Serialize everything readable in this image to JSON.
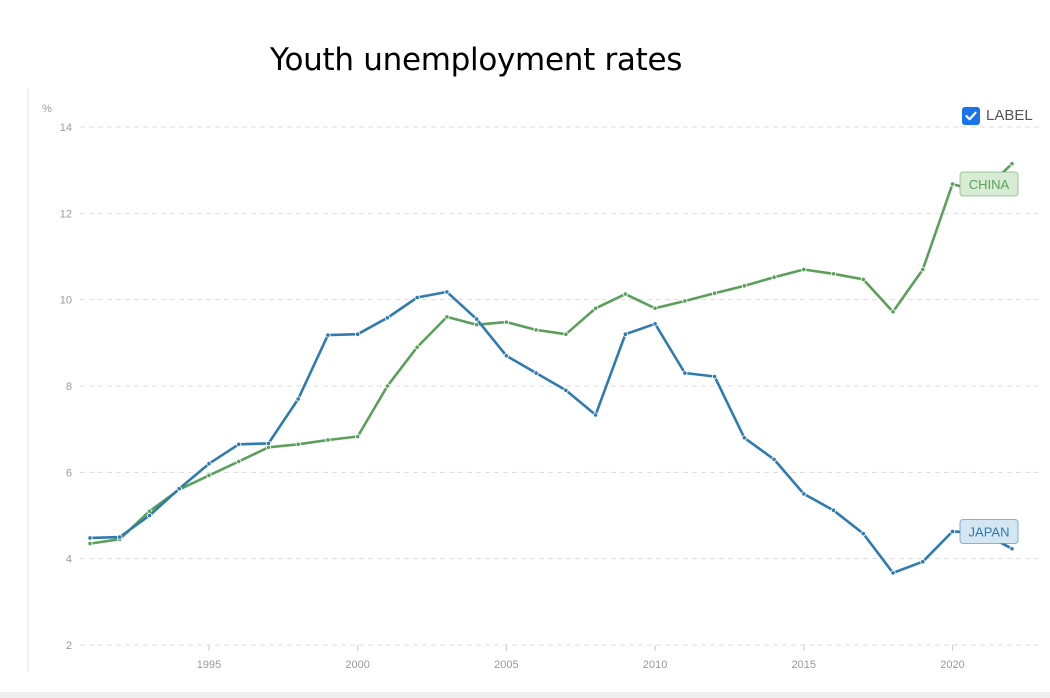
{
  "title": "Youth unemployment rates",
  "legend": {
    "checkbox_label": "LABEL",
    "checked": true
  },
  "chart_data": {
    "type": "line",
    "title": "Youth unemployment rates",
    "ylabel": "%",
    "xlabel": "",
    "xlim": [
      1991,
      2022
    ],
    "ylim": [
      2,
      14
    ],
    "x_ticks": [
      1995,
      2000,
      2005,
      2010,
      2015,
      2020
    ],
    "y_ticks": [
      2,
      4,
      6,
      8,
      10,
      12,
      14
    ],
    "grid": true,
    "x": [
      1991,
      1992,
      1993,
      1994,
      1995,
      1996,
      1997,
      1998,
      1999,
      2000,
      2001,
      2002,
      2003,
      2004,
      2005,
      2006,
      2007,
      2008,
      2009,
      2010,
      2011,
      2012,
      2013,
      2014,
      2015,
      2016,
      2017,
      2018,
      2019,
      2020,
      2021,
      2022
    ],
    "series": [
      {
        "name": "CHINA",
        "color": "#5ba05a",
        "label_bg": "#d8ecd5",
        "values": [
          4.35,
          4.45,
          5.1,
          5.6,
          5.93,
          6.25,
          6.58,
          6.65,
          6.75,
          6.83,
          8.0,
          8.9,
          9.6,
          9.42,
          9.48,
          9.3,
          9.2,
          9.8,
          10.13,
          9.8,
          9.97,
          10.15,
          10.32,
          10.52,
          10.7,
          10.6,
          10.47,
          9.72,
          10.7,
          12.68,
          12.48,
          13.15
        ]
      },
      {
        "name": "JAPAN",
        "color": "#2f7bb0",
        "label_bg": "#d5e6f3",
        "values": [
          4.48,
          4.5,
          5.0,
          5.62,
          6.2,
          6.65,
          6.67,
          7.7,
          9.18,
          9.2,
          9.58,
          10.05,
          10.18,
          9.55,
          8.7,
          8.3,
          7.9,
          7.33,
          9.2,
          9.44,
          8.3,
          8.22,
          6.8,
          6.3,
          5.5,
          5.12,
          4.58,
          3.67,
          3.93,
          4.63,
          4.6,
          4.23
        ]
      }
    ]
  }
}
